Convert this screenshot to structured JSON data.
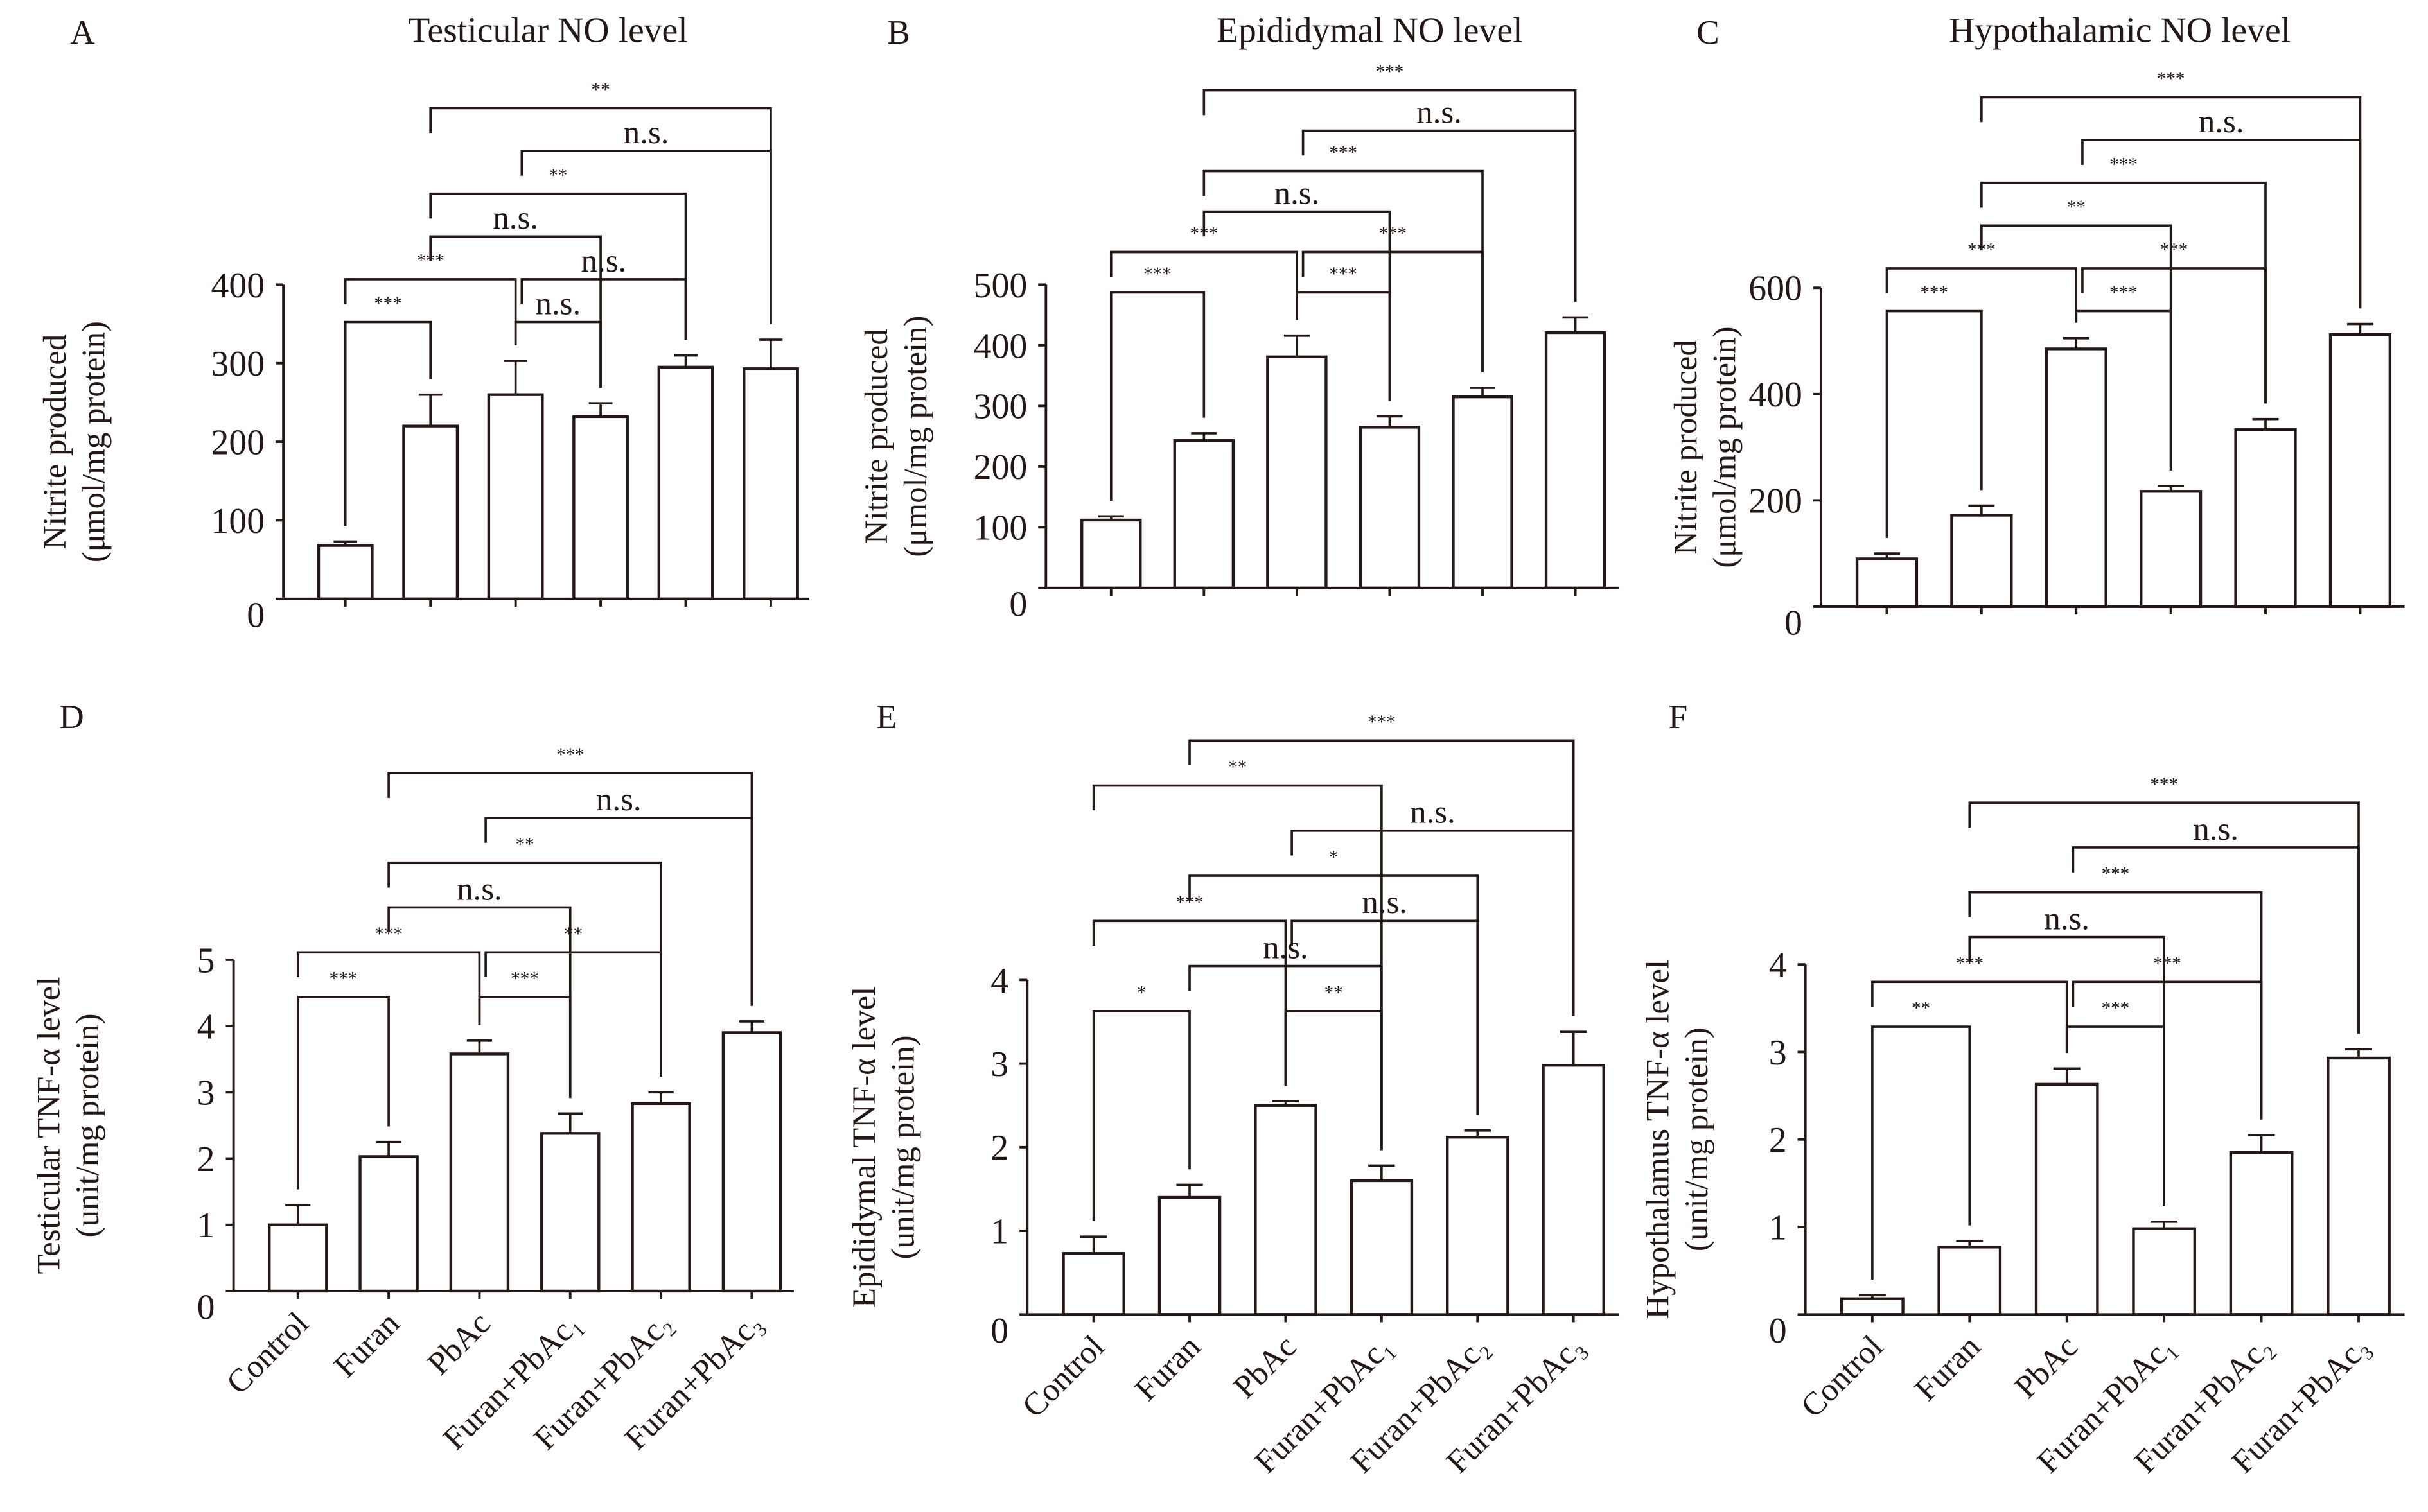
{
  "chart_data": [
    {
      "panel": "A",
      "type": "bar",
      "title": "Testicular NO level",
      "ylabel": [
        "Nitrite produced",
        "(μmol/mg protein)"
      ],
      "ylim": [
        0,
        400
      ],
      "yticks": [
        0,
        100,
        200,
        300,
        400
      ],
      "values": [
        68,
        220,
        260,
        232,
        295,
        293
      ],
      "errors": [
        5,
        40,
        43,
        17,
        15,
        37
      ],
      "comparisons": [
        {
          "a": 0,
          "b": 1,
          "label": "***",
          "level": 0
        },
        {
          "a": 2,
          "b": 3,
          "label": "n.s.",
          "level": 0
        },
        {
          "a": 0,
          "b": 2,
          "label": "***",
          "level": 1
        },
        {
          "a": 2,
          "b": 4,
          "label": "n.s.",
          "level": 1
        },
        {
          "a": 1,
          "b": 3,
          "label": "n.s.",
          "level": 2
        },
        {
          "a": 1,
          "b": 4,
          "label": "**",
          "level": 3
        },
        {
          "a": 2,
          "b": 5,
          "label": "n.s.",
          "level": 4
        },
        {
          "a": 1,
          "b": 5,
          "label": "**",
          "level": 5
        }
      ]
    },
    {
      "panel": "B",
      "type": "bar",
      "title": "Epididymal NO level",
      "ylabel": [
        "Nitrite produced",
        "(μmol/mg protein)"
      ],
      "ylim": [
        0,
        500
      ],
      "yticks": [
        0,
        100,
        200,
        300,
        400,
        500
      ],
      "values": [
        112,
        243,
        381,
        265,
        315,
        421
      ],
      "errors": [
        6,
        12,
        35,
        18,
        15,
        25
      ],
      "comparisons": [
        {
          "a": 0,
          "b": 1,
          "label": "***",
          "level": 0
        },
        {
          "a": 2,
          "b": 3,
          "label": "***",
          "level": 0
        },
        {
          "a": 0,
          "b": 2,
          "label": "***",
          "level": 1
        },
        {
          "a": 2,
          "b": 4,
          "label": "***",
          "level": 1
        },
        {
          "a": 1,
          "b": 3,
          "label": "n.s.",
          "level": 2
        },
        {
          "a": 1,
          "b": 4,
          "label": "***",
          "level": 3
        },
        {
          "a": 2,
          "b": 5,
          "label": "n.s.",
          "level": 4
        },
        {
          "a": 1,
          "b": 5,
          "label": "***",
          "level": 5
        }
      ]
    },
    {
      "panel": "C",
      "type": "bar",
      "title": "Hypothalamic NO level",
      "ylabel": [
        "Nitrite produced",
        "(μmol/mg protein)"
      ],
      "ylim": [
        0,
        600
      ],
      "yticks": [
        0,
        200,
        400,
        600
      ],
      "values": [
        90,
        172,
        485,
        217,
        333,
        512
      ],
      "errors": [
        10,
        18,
        20,
        10,
        20,
        20
      ],
      "comparisons": [
        {
          "a": 0,
          "b": 1,
          "label": "***",
          "level": 0
        },
        {
          "a": 2,
          "b": 3,
          "label": "***",
          "level": 0
        },
        {
          "a": 0,
          "b": 2,
          "label": "***",
          "level": 1
        },
        {
          "a": 2,
          "b": 4,
          "label": "***",
          "level": 1
        },
        {
          "a": 1,
          "b": 3,
          "label": "**",
          "level": 2
        },
        {
          "a": 1,
          "b": 4,
          "label": "***",
          "level": 3
        },
        {
          "a": 2,
          "b": 5,
          "label": "n.s.",
          "level": 4
        },
        {
          "a": 1,
          "b": 5,
          "label": "***",
          "level": 5
        }
      ]
    },
    {
      "panel": "D",
      "type": "bar",
      "title": "",
      "ylabel": [
        "Testicular TNF-α level",
        "(unit/mg protein)"
      ],
      "ylim": [
        0,
        5
      ],
      "yticks": [
        0,
        1,
        2,
        3,
        4,
        5
      ],
      "categories": [
        "Control",
        "Furan",
        "PbAc",
        "Furan+PbAc₁",
        "Furan+PbAc₂",
        "Furan+PbAc₃"
      ],
      "values": [
        1.0,
        2.03,
        3.58,
        2.38,
        2.83,
        3.9
      ],
      "errors": [
        0.3,
        0.22,
        0.2,
        0.3,
        0.17,
        0.17
      ],
      "comparisons": [
        {
          "a": 0,
          "b": 1,
          "label": "***",
          "level": 0
        },
        {
          "a": 2,
          "b": 3,
          "label": "***",
          "level": 0
        },
        {
          "a": 0,
          "b": 2,
          "label": "***",
          "level": 1
        },
        {
          "a": 2,
          "b": 4,
          "label": "**",
          "level": 1
        },
        {
          "a": 1,
          "b": 3,
          "label": "n.s.",
          "level": 2
        },
        {
          "a": 1,
          "b": 4,
          "label": "**",
          "level": 3
        },
        {
          "a": 2,
          "b": 5,
          "label": "n.s.",
          "level": 4
        },
        {
          "a": 1,
          "b": 5,
          "label": "***",
          "level": 5
        }
      ]
    },
    {
      "panel": "E",
      "type": "bar",
      "title": "",
      "ylabel": [
        "Epididymal TNF-α level",
        "(unit/mg protein)"
      ],
      "ylim": [
        0,
        4
      ],
      "yticks": [
        0,
        1,
        2,
        3,
        4
      ],
      "categories": [
        "Control",
        "Furan",
        "PbAc",
        "Furan+PbAc₁",
        "Furan+PbAc₂",
        "Furan+PbAc₃"
      ],
      "values": [
        0.73,
        1.4,
        2.5,
        1.6,
        2.12,
        2.98
      ],
      "errors": [
        0.2,
        0.15,
        0.05,
        0.18,
        0.08,
        0.4
      ],
      "comparisons": [
        {
          "a": 0,
          "b": 1,
          "label": "*",
          "level": 0
        },
        {
          "a": 2,
          "b": 3,
          "label": "**",
          "level": 0
        },
        {
          "a": 1,
          "b": 3,
          "label": "n.s.",
          "level": 1
        },
        {
          "a": 0,
          "b": 2,
          "label": "***",
          "level": 2
        },
        {
          "a": 2,
          "b": 4,
          "label": "n.s.",
          "level": 2
        },
        {
          "a": 1,
          "b": 4,
          "label": "*",
          "level": 3
        },
        {
          "a": 2,
          "b": 5,
          "label": "n.s.",
          "level": 4
        },
        {
          "a": 0,
          "b": 3,
          "label": "**",
          "level": 5
        },
        {
          "a": 1,
          "b": 5,
          "label": "***",
          "level": 6
        }
      ]
    },
    {
      "panel": "F",
      "type": "bar",
      "title": "",
      "ylabel": [
        "Hypothalamus TNF-α level",
        "(unit/mg protein)"
      ],
      "ylim": [
        0,
        4
      ],
      "yticks": [
        0,
        1,
        2,
        3,
        4
      ],
      "categories": [
        "Control",
        "Furan",
        "PbAc",
        "Furan+PbAc₁",
        "Furan+PbAc₂",
        "Furan+PbAc₃"
      ],
      "values": [
        0.18,
        0.77,
        2.63,
        0.98,
        1.85,
        2.93
      ],
      "errors": [
        0.04,
        0.07,
        0.18,
        0.08,
        0.2,
        0.1
      ],
      "comparisons": [
        {
          "a": 0,
          "b": 1,
          "label": "**",
          "level": 0
        },
        {
          "a": 2,
          "b": 3,
          "label": "***",
          "level": 0
        },
        {
          "a": 0,
          "b": 2,
          "label": "***",
          "level": 1
        },
        {
          "a": 2,
          "b": 4,
          "label": "***",
          "level": 1
        },
        {
          "a": 1,
          "b": 3,
          "label": "n.s.",
          "level": 2
        },
        {
          "a": 1,
          "b": 4,
          "label": "***",
          "level": 3
        },
        {
          "a": 2,
          "b": 5,
          "label": "n.s.",
          "level": 4
        },
        {
          "a": 1,
          "b": 5,
          "label": "***",
          "level": 5
        }
      ]
    }
  ]
}
